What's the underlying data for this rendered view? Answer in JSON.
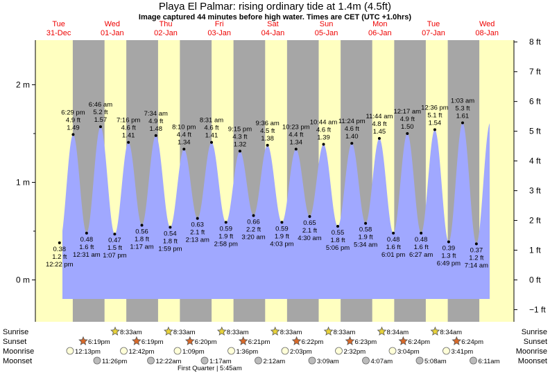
{
  "title": "Playa El Palmar: rising  ordinary tide at 1.4m (4.5ft)",
  "subtitle": "Image captured 44 minutes before high water. Times are CET (UTC +1.0hrs)",
  "colors": {
    "night": "#a6a6a6",
    "day": "#ffffc0",
    "water": "#a0a8ff",
    "day_label": "#ee0000",
    "sun": "#e8d23a",
    "sunset": "#d96a2a",
    "moon": "#ffffd8",
    "moon_set": "#bbbbbb"
  },
  "days": [
    {
      "weekday": "Tue",
      "date": "31-Dec"
    },
    {
      "weekday": "Wed",
      "date": "01-Jan"
    },
    {
      "weekday": "Thu",
      "date": "02-Jan"
    },
    {
      "weekday": "Fri",
      "date": "03-Jan"
    },
    {
      "weekday": "Sat",
      "date": "04-Jan"
    },
    {
      "weekday": "Sun",
      "date": "05-Jan"
    },
    {
      "weekday": "Mon",
      "date": "06-Jan"
    },
    {
      "weekday": "Tue",
      "date": "07-Jan"
    },
    {
      "weekday": "Wed",
      "date": "08-Jan"
    }
  ],
  "rows": {
    "sunrise": "Sunrise",
    "sunset": "Sunset",
    "moonrise": "Moonrise",
    "moonset": "Moonset"
  },
  "moon_phase": "First Quarter | 5:45am",
  "chart_data": {
    "type": "area",
    "title": "Playa El Palmar: rising  ordinary tide at 1.4m (4.5ft)",
    "left_axis": {
      "unit": "m",
      "ticks": [
        "0 m",
        "1 m",
        "2 m"
      ],
      "range": [
        -0.2,
        2.45
      ]
    },
    "right_axis": {
      "unit": "ft",
      "ticks": [
        "−1 ft",
        "0 ft",
        "1 ft",
        "2 ft",
        "3 ft",
        "4 ft",
        "5 ft",
        "6 ft",
        "7 ft",
        "8 ft"
      ]
    },
    "x_start": "Tue 31-Dec",
    "x_end": "Wed 08-Jan",
    "events": [
      {
        "type": "low",
        "time": "12:22 pm",
        "m": "0.38 m",
        "ft": "1.2 ft"
      },
      {
        "type": "high",
        "time": "6:29 pm",
        "m": "1.49 m",
        "ft": "4.9 ft"
      },
      {
        "type": "low",
        "time": "12:31 am",
        "m": "0.48 m",
        "ft": "1.6 ft"
      },
      {
        "type": "high",
        "time": "6:46 am",
        "m": "1.57 m",
        "ft": "5.2 ft"
      },
      {
        "type": "low",
        "time": "1:07 pm",
        "m": "0.47 m",
        "ft": "1.5 ft"
      },
      {
        "type": "high",
        "time": "7:16 pm",
        "m": "1.41 m",
        "ft": "4.6 ft"
      },
      {
        "type": "low",
        "time": "1:17 am",
        "m": "0.56 m",
        "ft": "1.8 ft"
      },
      {
        "type": "high",
        "time": "7:34 am",
        "m": "1.48 m",
        "ft": "4.9 ft"
      },
      {
        "type": "low",
        "time": "1:59 pm",
        "m": "0.54 m",
        "ft": "1.8 ft"
      },
      {
        "type": "high",
        "time": "8:10 pm",
        "m": "1.34 m",
        "ft": "4.4 ft"
      },
      {
        "type": "low",
        "time": "2:13 am",
        "m": "0.63 m",
        "ft": "2.1 ft"
      },
      {
        "type": "high",
        "time": "8:31 am",
        "m": "1.41 m",
        "ft": "4.6 ft"
      },
      {
        "type": "low",
        "time": "2:58 pm",
        "m": "0.59 m",
        "ft": "1.9 ft"
      },
      {
        "type": "high",
        "time": "9:15 pm",
        "m": "1.32 m",
        "ft": "4.3 ft"
      },
      {
        "type": "low",
        "time": "3:20 am",
        "m": "0.66 m",
        "ft": "2.2 ft"
      },
      {
        "type": "high",
        "time": "9:36 am",
        "m": "1.38 m",
        "ft": "4.5 ft"
      },
      {
        "type": "low",
        "time": "4:03 pm",
        "m": "0.59 m",
        "ft": "1.9 ft"
      },
      {
        "type": "high",
        "time": "10:23 pm",
        "m": "1.34 m",
        "ft": "4.4 ft"
      },
      {
        "type": "low",
        "time": "4:30 am",
        "m": "0.65 m",
        "ft": "2.1 ft"
      },
      {
        "type": "high",
        "time": "10:44 am",
        "m": "1.39 m",
        "ft": "4.6 ft"
      },
      {
        "type": "low",
        "time": "5:06 pm",
        "m": "0.55 m",
        "ft": "1.8 ft"
      },
      {
        "type": "high",
        "time": "11:24 pm",
        "m": "1.40 m",
        "ft": "4.6 ft"
      },
      {
        "type": "low",
        "time": "5:34 am",
        "m": "0.58 m",
        "ft": "1.9 ft"
      },
      {
        "type": "high",
        "time": "11:44 am",
        "m": "1.45 m",
        "ft": "4.8 ft"
      },
      {
        "type": "low",
        "time": "6:01 pm",
        "m": "0.48 m",
        "ft": "1.6 ft"
      },
      {
        "type": "high",
        "time": "12:17 am",
        "m": "1.50 m",
        "ft": "4.9 ft"
      },
      {
        "type": "low",
        "time": "6:27 am",
        "m": "0.48 m",
        "ft": "1.6 ft"
      },
      {
        "type": "high",
        "time": "12:36 pm",
        "m": "1.54 m",
        "ft": "5.1 ft"
      },
      {
        "type": "low",
        "time": "6:49 pm",
        "m": "0.39 m",
        "ft": "1.3 ft"
      },
      {
        "type": "high",
        "time": "1:03 am",
        "m": "1.61 m",
        "ft": "5.3 ft"
      },
      {
        "type": "low",
        "time": "7:14 am",
        "m": "0.37 m",
        "ft": "1.2 ft"
      }
    ],
    "sunrise": [
      "8:33am",
      "8:33am",
      "8:33am",
      "8:33am",
      "8:33am",
      "8:34am",
      "8:34am"
    ],
    "sunset": [
      "6:19pm",
      "6:19pm",
      "6:20pm",
      "6:21pm",
      "6:22pm",
      "6:23pm",
      "6:24pm",
      "6:24pm"
    ],
    "moonrise": [
      "12:13pm",
      "12:42pm",
      "1:09pm",
      "1:36pm",
      "2:03pm",
      "2:32pm",
      "3:04pm",
      "3:41pm"
    ],
    "moonset": [
      "11:26pm",
      "12:22am",
      "1:17am",
      "2:12am",
      "3:09am",
      "4:07am",
      "5:08am",
      "6:11am"
    ]
  }
}
